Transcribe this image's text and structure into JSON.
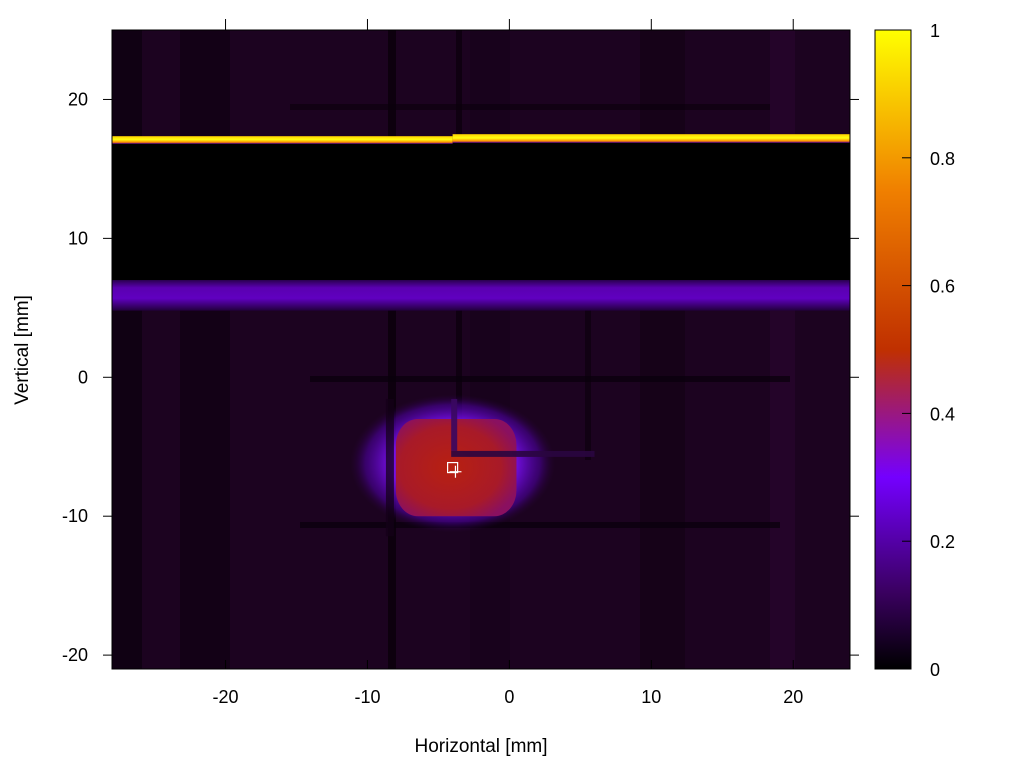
{
  "chart_data": {
    "type": "heatmap",
    "title": "",
    "xlabel": "Horizontal [mm]",
    "ylabel": "Vertical [mm]",
    "xlim": [
      -28,
      24
    ],
    "ylim": [
      -21,
      25
    ],
    "x_ticks": [
      -20,
      -10,
      0,
      10,
      20
    ],
    "y_ticks": [
      -20,
      -10,
      0,
      10,
      20
    ],
    "grid": false,
    "colorbar": {
      "range": [
        0,
        1
      ],
      "ticks": [
        0,
        0.2,
        0.4,
        0.6,
        0.8,
        1
      ],
      "tick_labels": [
        "0",
        "0.2",
        "0.4",
        "0.6",
        "0.8",
        "1"
      ],
      "colormap": [
        "#000000",
        "#3a0060",
        "#7400ff",
        "#c03000",
        "#f08000",
        "#ffff00"
      ]
    },
    "background_level": 0.03,
    "features": [
      {
        "name": "bright horizontal band",
        "x": [
          -28,
          24
        ],
        "y": [
          17.1,
          17.5
        ],
        "value": 1.0
      },
      {
        "name": "dark region",
        "x": [
          -28,
          24
        ],
        "y": [
          7,
          17
        ],
        "value": 0.0
      },
      {
        "name": "glow band",
        "x": [
          -28,
          24
        ],
        "y": [
          4.8,
          7
        ],
        "value": 0.22
      },
      {
        "name": "spot core",
        "center": [
          -3.6,
          -6.2
        ],
        "x": [
          -8,
          0.5
        ],
        "y": [
          -10,
          -3
        ],
        "value": 0.5
      },
      {
        "name": "spot halo",
        "center": [
          -4.0,
          -6.2
        ],
        "x": [
          -10,
          2.5
        ],
        "y": [
          -11,
          -2.5
        ],
        "value": 0.3
      }
    ],
    "markers": [
      {
        "shape": "square",
        "x": -4.0,
        "y": -6.5
      },
      {
        "shape": "plus",
        "x": -3.8,
        "y": -6.8
      }
    ]
  }
}
